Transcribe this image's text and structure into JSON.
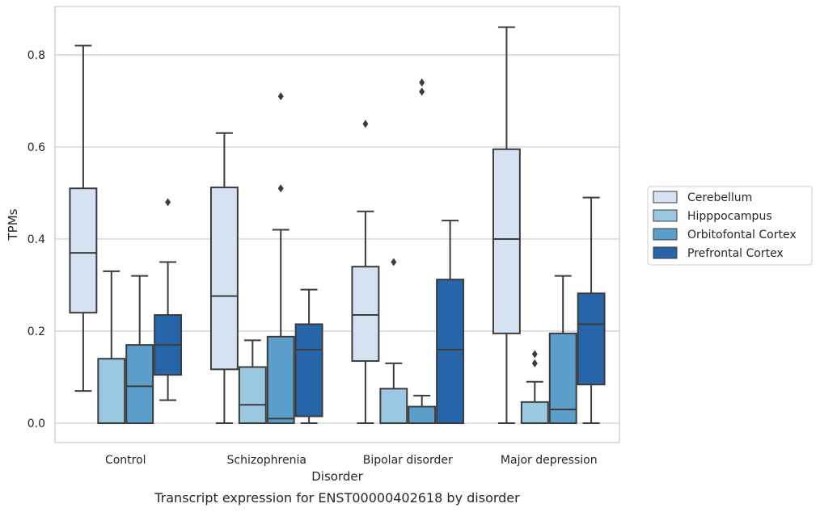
{
  "chart_data": {
    "type": "box",
    "title": "",
    "caption": "Transcript expression for ENST00000402618 by disorder",
    "xlabel": "Disorder",
    "ylabel": "TPMs",
    "ylim": [
      -0.042,
      0.905
    ],
    "yticks": [
      0.0,
      0.2,
      0.4,
      0.6,
      0.8
    ],
    "ytick_labels": [
      "0.0",
      "0.2",
      "0.4",
      "0.6",
      "0.8"
    ],
    "grid": true,
    "legend_position": "right",
    "categories": [
      "Control",
      "Schizophrenia",
      "Bipolar disorder",
      "Major depression"
    ],
    "series": [
      {
        "name": "Cerebellum",
        "color": "#d4e2f2",
        "boxes": [
          {
            "whislo": 0.07,
            "q1": 0.24,
            "med": 0.37,
            "q3": 0.51,
            "whishi": 0.82,
            "fliers": []
          },
          {
            "whislo": 0.0,
            "q1": 0.117,
            "med": 0.276,
            "q3": 0.512,
            "whishi": 0.63,
            "fliers": []
          },
          {
            "whislo": 0.0,
            "q1": 0.135,
            "med": 0.235,
            "q3": 0.34,
            "whishi": 0.46,
            "fliers": [
              0.65
            ]
          },
          {
            "whislo": 0.0,
            "q1": 0.195,
            "med": 0.4,
            "q3": 0.595,
            "whishi": 0.86,
            "fliers": []
          }
        ]
      },
      {
        "name": "Hipppocampus",
        "color": "#9ac8e0",
        "boxes": [
          {
            "whislo": 0.0,
            "q1": 0.0,
            "med": 0.0,
            "q3": 0.14,
            "whishi": 0.33,
            "fliers": []
          },
          {
            "whislo": 0.0,
            "q1": 0.0,
            "med": 0.04,
            "q3": 0.122,
            "whishi": 0.18,
            "fliers": []
          },
          {
            "whislo": 0.0,
            "q1": 0.0,
            "med": 0.0,
            "q3": 0.075,
            "whishi": 0.13,
            "fliers": [
              0.35
            ]
          },
          {
            "whislo": 0.0,
            "q1": 0.0,
            "med": 0.0,
            "q3": 0.046,
            "whishi": 0.09,
            "fliers": [
              0.13,
              0.15
            ]
          }
        ]
      },
      {
        "name": "Orbitofontal Cortex",
        "color": "#5a9ec9",
        "boxes": [
          {
            "whislo": 0.0,
            "q1": 0.0,
            "med": 0.08,
            "q3": 0.17,
            "whishi": 0.32,
            "fliers": []
          },
          {
            "whislo": 0.0,
            "q1": 0.0,
            "med": 0.01,
            "q3": 0.188,
            "whishi": 0.42,
            "fliers": [
              0.51,
              0.71
            ]
          },
          {
            "whislo": 0.0,
            "q1": 0.0,
            "med": 0.0,
            "q3": 0.036,
            "whishi": 0.06,
            "fliers": [
              0.72,
              0.74
            ]
          },
          {
            "whislo": 0.0,
            "q1": 0.0,
            "med": 0.03,
            "q3": 0.195,
            "whishi": 0.32,
            "fliers": []
          }
        ]
      },
      {
        "name": "Prefrontal Cortex",
        "color": "#2565a8",
        "boxes": [
          {
            "whislo": 0.05,
            "q1": 0.105,
            "med": 0.17,
            "q3": 0.235,
            "whishi": 0.35,
            "fliers": [
              0.48
            ]
          },
          {
            "whislo": 0.0,
            "q1": 0.015,
            "med": 0.16,
            "q3": 0.215,
            "whishi": 0.29,
            "fliers": []
          },
          {
            "whislo": 0.0,
            "q1": 0.0,
            "med": 0.16,
            "q3": 0.312,
            "whishi": 0.44,
            "fliers": []
          },
          {
            "whislo": 0.0,
            "q1": 0.084,
            "med": 0.215,
            "q3": 0.282,
            "whishi": 0.49,
            "fliers": []
          }
        ]
      }
    ]
  }
}
